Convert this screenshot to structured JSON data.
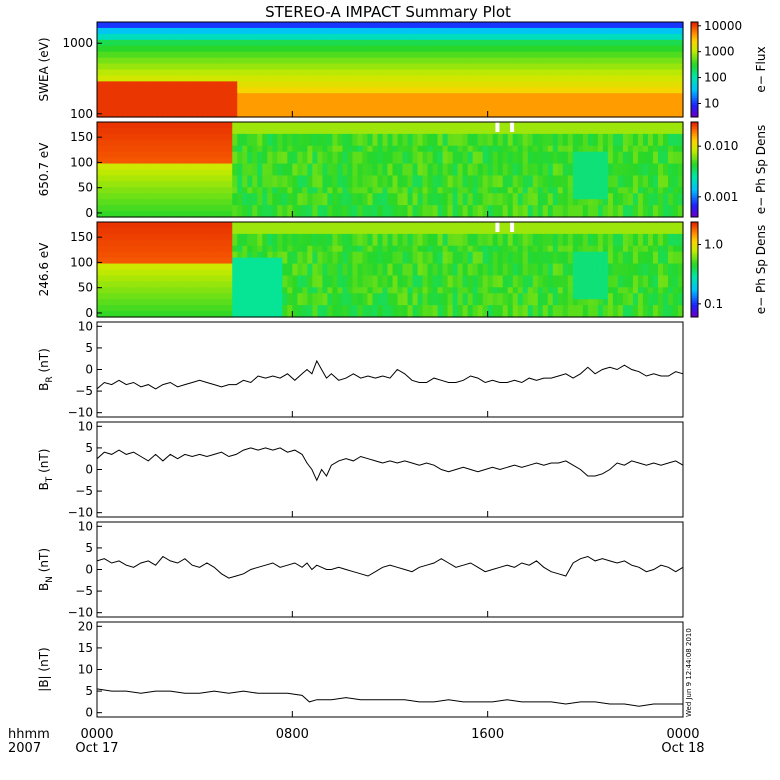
{
  "title": "STEREO-A IMPACT Summary Plot",
  "stamp": "Wed Jun  9 12:44:08 2010",
  "time_axis": {
    "label_line1": "hhmm",
    "label_line2": "2007",
    "ticks": [
      {
        "hours": 0,
        "label": "0000",
        "date": "Oct 17"
      },
      {
        "hours": 8,
        "label": "0800",
        "date": ""
      },
      {
        "hours": 16,
        "label": "1600",
        "date": ""
      },
      {
        "hours": 24,
        "label": "0000",
        "date": "Oct 18"
      }
    ],
    "range_hours": [
      0,
      24
    ]
  },
  "chart_data": [
    {
      "type": "heatmap",
      "panel": "swea",
      "ylabel": "SWEA (eV)",
      "yscale": "log",
      "ylim": [
        90,
        2000
      ],
      "yticks": [
        {
          "v": 100,
          "label": "100"
        },
        {
          "v": 1000,
          "label": "1000"
        }
      ],
      "colorbar": {
        "label": "e− Flux",
        "scale": "log",
        "range": [
          3,
          14000
        ],
        "ticks": [
          {
            "v": 10,
            "label": "10"
          },
          {
            "v": 100,
            "label": "100"
          },
          {
            "v": 1000,
            "label": "1000"
          },
          {
            "v": 10000,
            "label": "10000"
          }
        ]
      },
      "colorscale": "rainbow",
      "transition_hours": 5.8
    },
    {
      "type": "heatmap",
      "panel": "pad650",
      "ylabel": "650.7 eV",
      "ylim": [
        -8,
        180
      ],
      "yticks": [
        {
          "v": 0,
          "label": "0"
        },
        {
          "v": 50,
          "label": "50"
        },
        {
          "v": 100,
          "label": "100"
        },
        {
          "v": 150,
          "label": "150"
        }
      ],
      "colorbar": {
        "label": "e− Ph Sp Dens",
        "scale": "log",
        "range": [
          0.0004,
          0.03
        ],
        "ticks": [
          {
            "v": 0.001,
            "label": "0.001"
          },
          {
            "v": 0.01,
            "label": "0.010"
          }
        ]
      },
      "colorscale": "rainbow",
      "transition_hours": 5.6,
      "gaps_hours": [
        16.4,
        17.0
      ]
    },
    {
      "type": "heatmap",
      "panel": "pad246",
      "ylabel": "246.6 eV",
      "ylim": [
        -8,
        180
      ],
      "yticks": [
        {
          "v": 0,
          "label": "0"
        },
        {
          "v": 50,
          "label": "50"
        },
        {
          "v": 100,
          "label": "100"
        },
        {
          "v": 150,
          "label": "150"
        }
      ],
      "colorbar": {
        "label": "e− Ph Sp Dens",
        "scale": "log",
        "range": [
          0.06,
          2.4
        ],
        "ticks": [
          {
            "v": 0.1,
            "label": "0.1"
          },
          {
            "v": 1.0,
            "label": "1.0"
          }
        ]
      },
      "colorscale": "rainbow",
      "transition_hours": 5.6,
      "gaps_hours": [
        16.4,
        17.0
      ]
    },
    {
      "type": "line",
      "panel": "br",
      "ylabel_main": "B",
      "ylabel_sub": "R",
      "ylabel_unit": " (nT)",
      "ylim": [
        -11,
        11
      ],
      "yticks": [
        {
          "v": -10,
          "label": "−10"
        },
        {
          "v": -5,
          "label": "−5"
        },
        {
          "v": 0,
          "label": "0"
        },
        {
          "v": 5,
          "label": "5"
        },
        {
          "v": 10,
          "label": "10"
        }
      ],
      "x": [
        0,
        0.3,
        0.6,
        0.9,
        1.2,
        1.5,
        1.8,
        2.1,
        2.4,
        2.7,
        3.0,
        3.3,
        3.6,
        3.9,
        4.2,
        4.5,
        4.8,
        5.1,
        5.4,
        5.7,
        6.0,
        6.3,
        6.6,
        6.9,
        7.2,
        7.5,
        7.8,
        8.1,
        8.4,
        8.6,
        8.8,
        9.0,
        9.2,
        9.4,
        9.6,
        9.9,
        10.2,
        10.5,
        10.8,
        11.1,
        11.4,
        11.7,
        12.0,
        12.3,
        12.6,
        12.9,
        13.2,
        13.5,
        13.8,
        14.1,
        14.4,
        14.7,
        15.0,
        15.3,
        15.6,
        15.9,
        16.2,
        16.5,
        16.8,
        17.1,
        17.4,
        17.7,
        18.0,
        18.3,
        18.6,
        18.9,
        19.2,
        19.5,
        19.8,
        20.1,
        20.4,
        20.7,
        21.0,
        21.3,
        21.6,
        21.9,
        22.2,
        22.5,
        22.8,
        23.1,
        23.4,
        23.7,
        24.0
      ],
      "y": [
        -4.5,
        -3,
        -3.5,
        -2.5,
        -3.5,
        -3,
        -4,
        -3.5,
        -4.5,
        -3.5,
        -3,
        -4,
        -3.5,
        -3,
        -2.5,
        -3,
        -3.5,
        -4,
        -3.5,
        -3.5,
        -2.5,
        -3,
        -1.5,
        -2,
        -1.5,
        -2,
        -1,
        -2.5,
        -1,
        0,
        -1,
        2,
        0,
        -2,
        -1,
        -2.5,
        -2,
        -1,
        -2,
        -1.5,
        -2,
        -1.5,
        -2,
        0,
        -1,
        -2.5,
        -3,
        -3,
        -2,
        -2.5,
        -3,
        -3,
        -2.5,
        -1.5,
        -2,
        -3,
        -2.5,
        -3,
        -3,
        -2.5,
        -3,
        -2,
        -2.5,
        -2,
        -2,
        -1.5,
        -1,
        -2,
        -1,
        0.5,
        -1,
        0,
        0.5,
        0,
        1,
        0,
        -0.5,
        -1.5,
        -1,
        -1.5,
        -1.5,
        -0.5,
        -1
      ]
    },
    {
      "type": "line",
      "panel": "bt",
      "ylabel_main": "B",
      "ylabel_sub": "T",
      "ylabel_unit": " (nT)",
      "ylim": [
        -11,
        11
      ],
      "yticks": [
        {
          "v": -10,
          "label": "−10"
        },
        {
          "v": -5,
          "label": "−5"
        },
        {
          "v": 0,
          "label": "0"
        },
        {
          "v": 5,
          "label": "5"
        },
        {
          "v": 10,
          "label": "10"
        }
      ],
      "x": [
        0,
        0.3,
        0.6,
        0.9,
        1.2,
        1.5,
        1.8,
        2.1,
        2.4,
        2.7,
        3.0,
        3.3,
        3.6,
        3.9,
        4.2,
        4.5,
        4.8,
        5.1,
        5.4,
        5.7,
        6.0,
        6.3,
        6.6,
        6.9,
        7.2,
        7.5,
        7.8,
        8.1,
        8.4,
        8.6,
        8.8,
        9.0,
        9.2,
        9.4,
        9.6,
        9.9,
        10.2,
        10.5,
        10.8,
        11.1,
        11.4,
        11.7,
        12.0,
        12.3,
        12.6,
        12.9,
        13.2,
        13.5,
        13.8,
        14.1,
        14.4,
        14.7,
        15.0,
        15.3,
        15.6,
        15.9,
        16.2,
        16.5,
        16.8,
        17.1,
        17.4,
        17.7,
        18.0,
        18.3,
        18.6,
        18.9,
        19.2,
        19.5,
        19.8,
        20.1,
        20.4,
        20.7,
        21.0,
        21.3,
        21.6,
        21.9,
        22.2,
        22.5,
        22.8,
        23.1,
        23.4,
        23.7,
        24.0
      ],
      "y": [
        2.5,
        4,
        3.5,
        4.5,
        3.5,
        4,
        3,
        2,
        3.5,
        2,
        3.5,
        2.5,
        3.5,
        3,
        3.5,
        3,
        3.5,
        4,
        3,
        3.5,
        4.5,
        5,
        4.5,
        5,
        4.5,
        5,
        4,
        4.5,
        3.5,
        1.5,
        0,
        -2.5,
        0,
        -1.5,
        1,
        2,
        2.5,
        2,
        3,
        2.5,
        2,
        1.5,
        2,
        1.5,
        2,
        1.5,
        1,
        1.5,
        1,
        0,
        -0.5,
        0,
        0.5,
        0,
        -0.5,
        0,
        0.5,
        0,
        0.5,
        1,
        0.5,
        1,
        1.5,
        1,
        1.5,
        1.5,
        2,
        1,
        0,
        -1.5,
        -1.5,
        -1,
        0,
        1.5,
        1,
        2,
        1.5,
        1,
        1.5,
        1,
        1.5,
        2,
        1
      ]
    },
    {
      "type": "line",
      "panel": "bn",
      "ylabel_main": "B",
      "ylabel_sub": "N",
      "ylabel_unit": " (nT)",
      "ylim": [
        -11,
        11
      ],
      "yticks": [
        {
          "v": -10,
          "label": "−10"
        },
        {
          "v": -5,
          "label": "−5"
        },
        {
          "v": 0,
          "label": "0"
        },
        {
          "v": 5,
          "label": "5"
        },
        {
          "v": 10,
          "label": "10"
        }
      ],
      "x": [
        0,
        0.3,
        0.6,
        0.9,
        1.2,
        1.5,
        1.8,
        2.1,
        2.4,
        2.7,
        3.0,
        3.3,
        3.6,
        3.9,
        4.2,
        4.5,
        4.8,
        5.1,
        5.4,
        5.7,
        6.0,
        6.3,
        6.6,
        6.9,
        7.2,
        7.5,
        7.8,
        8.1,
        8.4,
        8.6,
        8.8,
        9.0,
        9.2,
        9.4,
        9.6,
        9.9,
        10.2,
        10.5,
        10.8,
        11.1,
        11.4,
        11.7,
        12.0,
        12.3,
        12.6,
        12.9,
        13.2,
        13.5,
        13.8,
        14.1,
        14.4,
        14.7,
        15.0,
        15.3,
        15.6,
        15.9,
        16.2,
        16.5,
        16.8,
        17.1,
        17.4,
        17.7,
        18.0,
        18.3,
        18.6,
        18.9,
        19.2,
        19.5,
        19.8,
        20.1,
        20.4,
        20.7,
        21.0,
        21.3,
        21.6,
        21.9,
        22.2,
        22.5,
        22.8,
        23.1,
        23.4,
        23.7,
        24.0
      ],
      "y": [
        2,
        2.5,
        1.5,
        2,
        1,
        0.5,
        1.5,
        2,
        1,
        3,
        2,
        1.5,
        2.5,
        1,
        0.5,
        1.5,
        0.5,
        -1,
        -2,
        -1.5,
        -1,
        0,
        0.5,
        1,
        1.5,
        0.5,
        1,
        1.5,
        0.5,
        1.5,
        0,
        1,
        0.5,
        0,
        0,
        0.5,
        0,
        -0.5,
        -1,
        -1.5,
        -0.5,
        0.5,
        1,
        0.5,
        0,
        -0.5,
        0.5,
        1,
        1.5,
        2.5,
        1.5,
        0.5,
        1,
        1.5,
        0.5,
        -0.5,
        0,
        0.5,
        1,
        0.5,
        1.5,
        1,
        2,
        0.5,
        -0.5,
        -1,
        -1.5,
        1.5,
        2.5,
        3,
        2,
        2.5,
        2,
        1.5,
        2,
        1,
        0.5,
        -0.5,
        0,
        1,
        0.5,
        -0.5,
        0.5
      ]
    },
    {
      "type": "line",
      "panel": "bmag",
      "ylabel_main": "|B|",
      "ylabel_sub": "",
      "ylabel_unit": " (nT)",
      "ylim": [
        -1,
        21
      ],
      "yticks": [
        {
          "v": 0,
          "label": "0"
        },
        {
          "v": 5,
          "label": "5"
        },
        {
          "v": 10,
          "label": "10"
        },
        {
          "v": 15,
          "label": "15"
        },
        {
          "v": 20,
          "label": "20"
        }
      ],
      "x": [
        0,
        0.6,
        1.2,
        1.8,
        2.4,
        3.0,
        3.6,
        4.2,
        4.8,
        5.4,
        6.0,
        6.6,
        7.2,
        7.8,
        8.4,
        8.7,
        9.0,
        9.6,
        10.2,
        10.8,
        11.4,
        12.0,
        12.6,
        13.2,
        13.8,
        14.4,
        15.0,
        15.6,
        16.2,
        16.8,
        17.4,
        18.0,
        18.6,
        19.2,
        19.8,
        20.4,
        21.0,
        21.6,
        22.2,
        22.8,
        23.4,
        24.0
      ],
      "y": [
        5.5,
        5,
        5,
        4.5,
        5,
        5,
        4.5,
        4.5,
        5,
        4.5,
        5,
        4.5,
        4.5,
        4.5,
        4,
        2.5,
        3,
        3,
        3.5,
        3,
        3,
        3,
        3,
        2.5,
        2.5,
        3,
        2.5,
        2.5,
        2.5,
        3,
        2.5,
        2.5,
        2.5,
        2,
        2.5,
        2.5,
        2,
        2,
        1.5,
        2,
        2,
        2
      ]
    }
  ]
}
